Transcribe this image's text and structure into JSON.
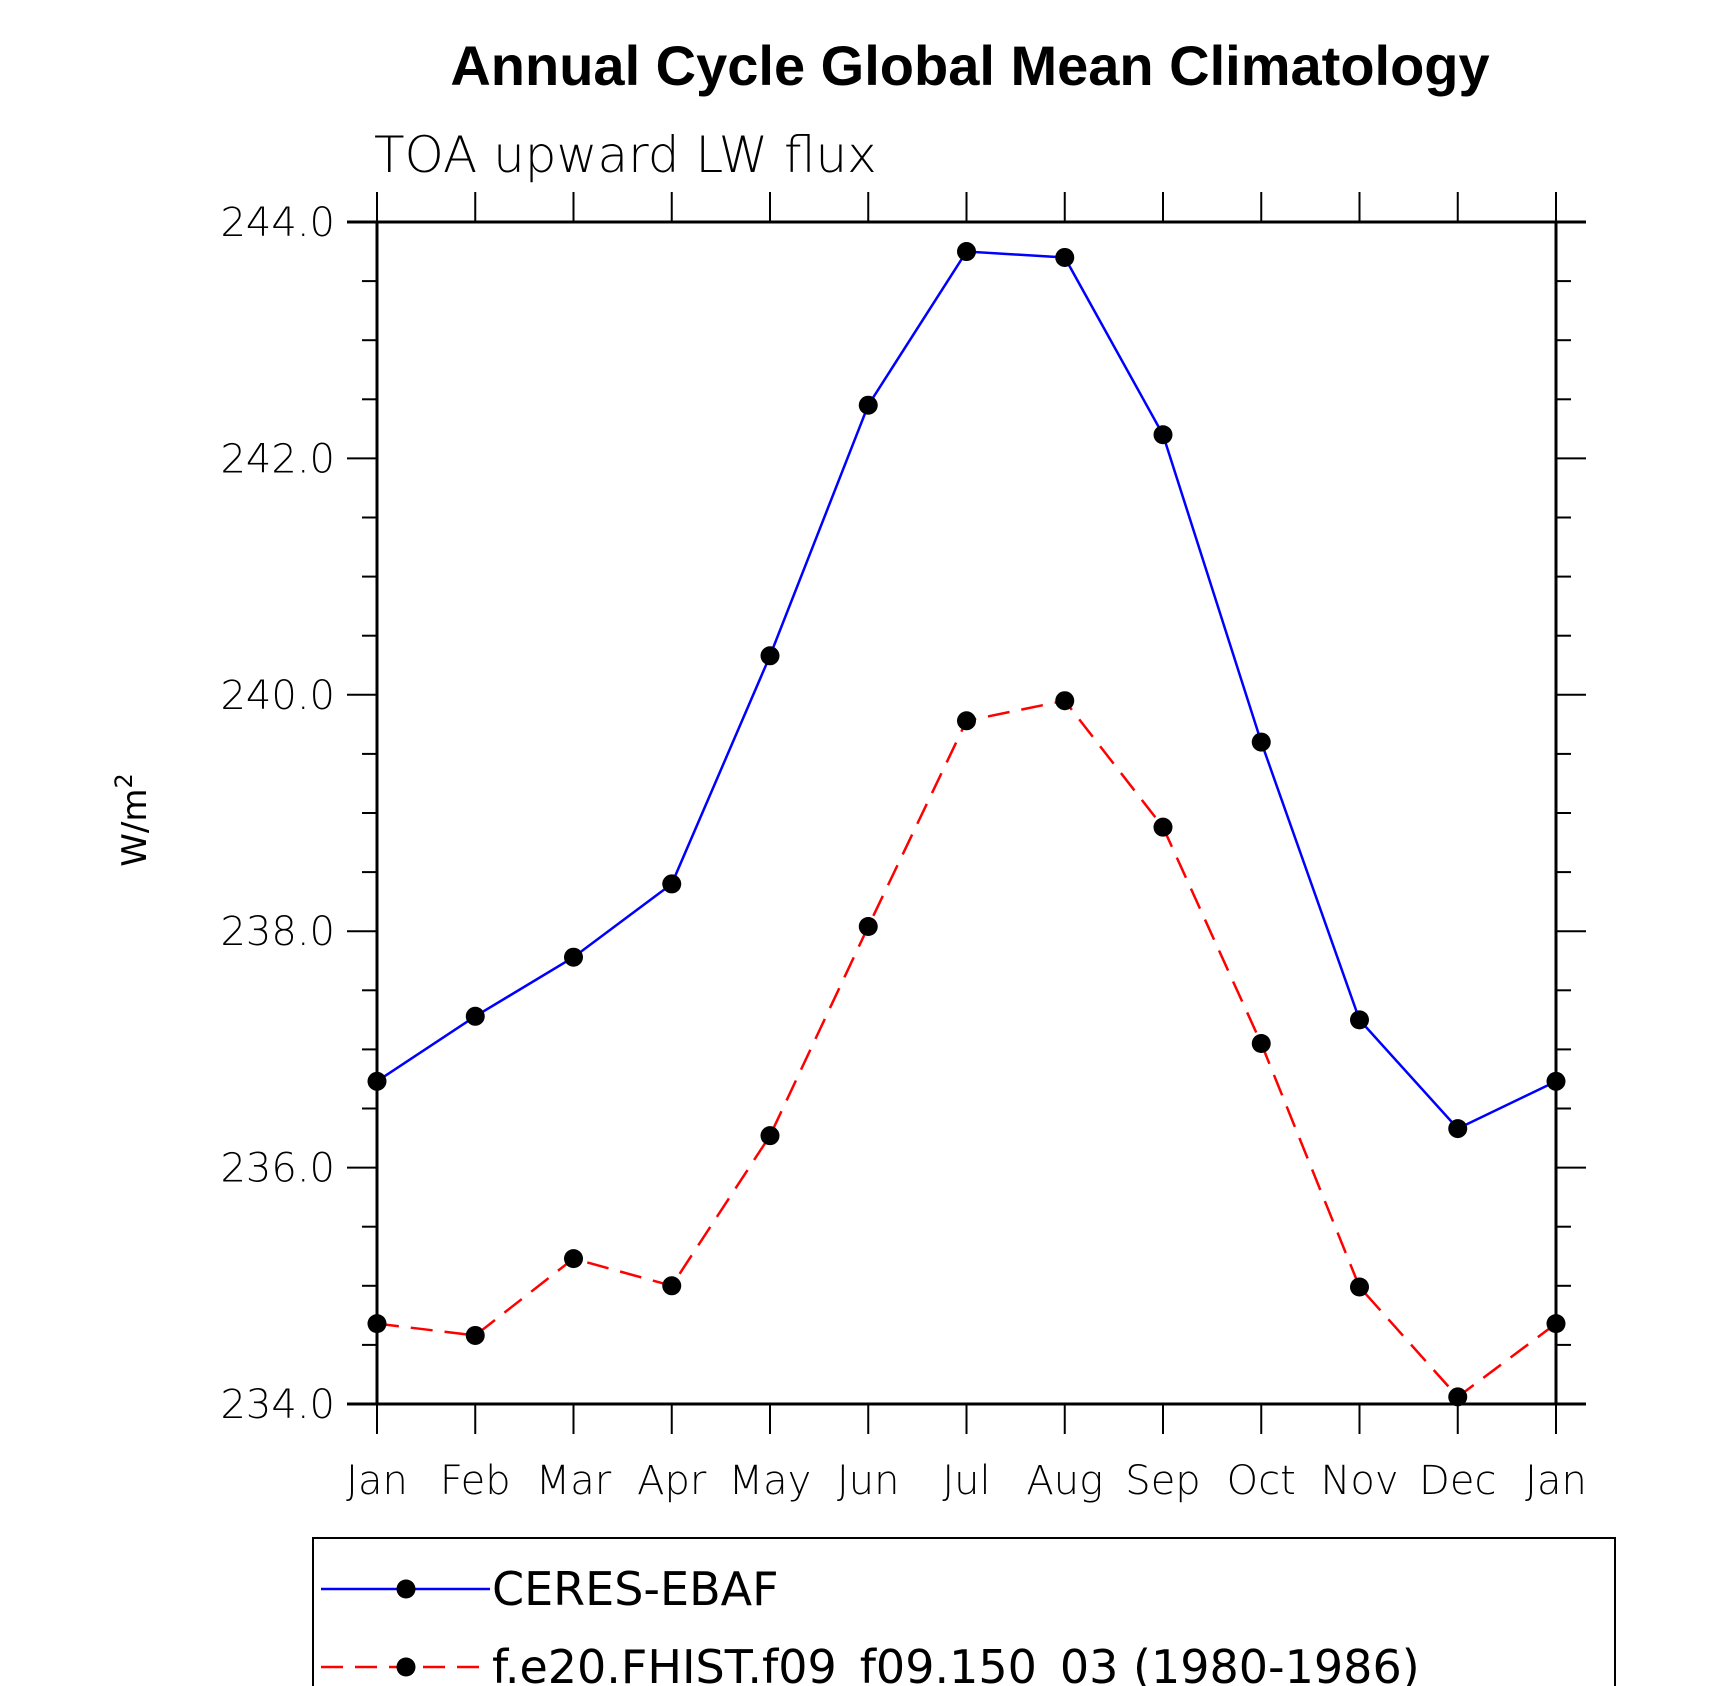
{
  "chart_data": {
    "type": "line",
    "title": "Annual Cycle Global Mean Climatology",
    "subtitle": "TOA upward LW flux",
    "ylabel": "W/m",
    "ylabel_superscript": "2",
    "categories": [
      "Jan",
      "Feb",
      "Mar",
      "Apr",
      "May",
      "Jun",
      "Jul",
      "Aug",
      "Sep",
      "Oct",
      "Nov",
      "Dec",
      "Jan"
    ],
    "ylim": [
      234.0,
      244.0
    ],
    "yticks": [
      "234.0",
      "236.0",
      "238.0",
      "240.0",
      "242.0",
      "244.0"
    ],
    "grid": false,
    "legend_position": "bottom",
    "series": [
      {
        "name": "CERES-EBAF",
        "color": "#0000ff",
        "dash": "solid",
        "marker": "filled-circle",
        "values": [
          236.73,
          237.28,
          237.78,
          238.4,
          240.33,
          242.45,
          243.75,
          243.7,
          242.2,
          239.6,
          237.25,
          236.33,
          236.73
        ]
      },
      {
        "name": "f.e20.FHIST.f09_f09.150_03 (1980-1986)",
        "color": "#ff0000",
        "dash": "dashed",
        "marker": "filled-circle",
        "values": [
          234.68,
          234.58,
          235.23,
          235.0,
          236.27,
          238.04,
          239.78,
          239.95,
          238.88,
          237.05,
          234.99,
          234.06,
          234.68
        ]
      }
    ]
  }
}
